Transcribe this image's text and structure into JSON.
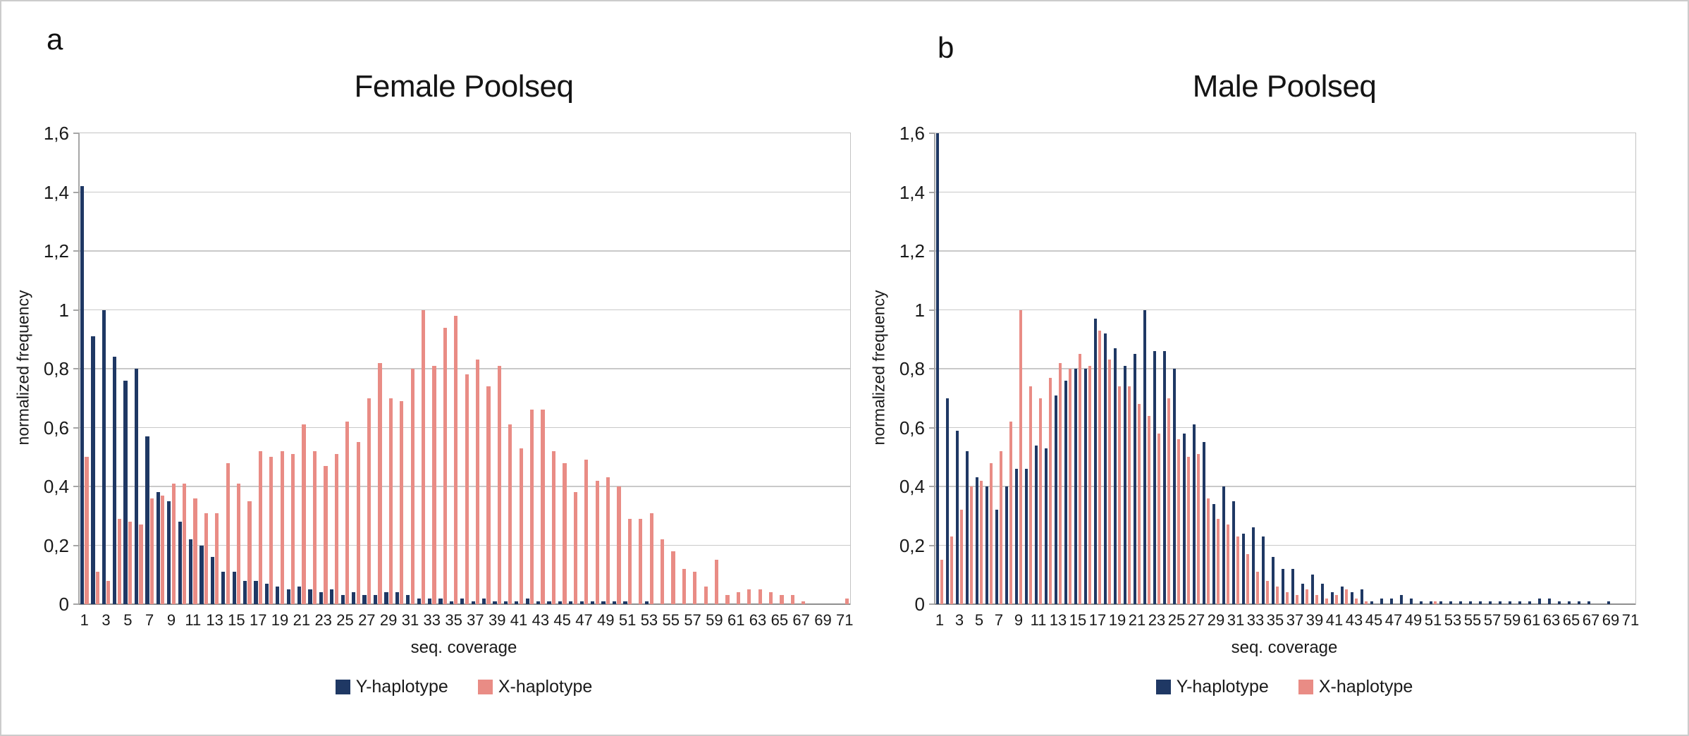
{
  "figure": {
    "panel_a_letter": "a",
    "panel_b_letter": "b"
  },
  "colors": {
    "y_haplotype": "#1f3864",
    "x_haplotype": "#e98c85",
    "gridline": "#c9c9c9",
    "axis": "#a6a6a6",
    "text": "#1a1a1a"
  },
  "chart_data": [
    {
      "type": "bar",
      "panel_letter": "a",
      "title": "Female Poolseq",
      "xlabel": "seq. coverage",
      "ylabel": "normalized frequency",
      "ylim": [
        0,
        1.6
      ],
      "ytick_step": 0.2,
      "grid": true,
      "legend_position": "bottom",
      "y_tick_labels": [
        "0",
        "0,2",
        "0,4",
        "0,6",
        "0,8",
        "1",
        "1,2",
        "1,4",
        "1,6"
      ],
      "x_tick_labels": [
        "1",
        "3",
        "5",
        "7",
        "9",
        "11",
        "13",
        "15",
        "17",
        "19",
        "21",
        "23",
        "25",
        "27",
        "29",
        "31",
        "33",
        "35",
        "37",
        "39",
        "41",
        "43",
        "45",
        "47",
        "49",
        "51",
        "53",
        "55",
        "57",
        "59",
        "61",
        "63",
        "65",
        "67",
        "69",
        "71"
      ],
      "x_range": [
        1,
        71
      ],
      "series": [
        {
          "name": "Y-haplotype",
          "color_key": "y_haplotype",
          "values": [
            1.42,
            0.91,
            1.0,
            0.84,
            0.76,
            0.8,
            0.57,
            0.38,
            0.35,
            0.28,
            0.22,
            0.2,
            0.16,
            0.11,
            0.11,
            0.08,
            0.08,
            0.07,
            0.06,
            0.05,
            0.06,
            0.05,
            0.04,
            0.05,
            0.03,
            0.04,
            0.03,
            0.03,
            0.04,
            0.04,
            0.03,
            0.02,
            0.02,
            0.02,
            0.01,
            0.02,
            0.01,
            0.02,
            0.01,
            0.01,
            0.01,
            0.02,
            0.01,
            0.01,
            0.01,
            0.01,
            0.01,
            0.01,
            0.01,
            0.01,
            0.01,
            0,
            0.01,
            0,
            0,
            0,
            0,
            0,
            0,
            0,
            0,
            0,
            0,
            0,
            0,
            0,
            0,
            0,
            0,
            0,
            0
          ]
        },
        {
          "name": "X-haplotype",
          "color_key": "x_haplotype",
          "values": [
            0.5,
            0.11,
            0.08,
            0.29,
            0.28,
            0.27,
            0.36,
            0.37,
            0.41,
            0.41,
            0.36,
            0.31,
            0.31,
            0.48,
            0.41,
            0.35,
            0.52,
            0.5,
            0.52,
            0.51,
            0.61,
            0.52,
            0.47,
            0.51,
            0.62,
            0.55,
            0.7,
            0.82,
            0.7,
            0.69,
            0.8,
            1.0,
            0.81,
            0.94,
            0.98,
            0.78,
            0.83,
            0.74,
            0.81,
            0.61,
            0.53,
            0.66,
            0.66,
            0.52,
            0.48,
            0.38,
            0.49,
            0.42,
            0.43,
            0.4,
            0.29,
            0.29,
            0.31,
            0.22,
            0.18,
            0.12,
            0.11,
            0.06,
            0.15,
            0.03,
            0.04,
            0.05,
            0.05,
            0.04,
            0.03,
            0.03,
            0.01,
            0,
            0,
            0,
            0.02
          ]
        }
      ]
    },
    {
      "type": "bar",
      "panel_letter": "b",
      "title": "Male Poolseq",
      "xlabel": "seq. coverage",
      "ylabel": "normalized frequency",
      "ylim": [
        0,
        1.6
      ],
      "ytick_step": 0.2,
      "grid": true,
      "legend_position": "bottom",
      "y_tick_labels": [
        "0",
        "0,2",
        "0,4",
        "0,6",
        "0,8",
        "1",
        "1,2",
        "1,4",
        "1,6"
      ],
      "x_tick_labels": [
        "1",
        "3",
        "5",
        "7",
        "9",
        "11",
        "13",
        "15",
        "17",
        "19",
        "21",
        "23",
        "25",
        "27",
        "29",
        "31",
        "33",
        "35",
        "37",
        "39",
        "41",
        "43",
        "45",
        "47",
        "49",
        "51",
        "53",
        "55",
        "57",
        "59",
        "61",
        "63",
        "65",
        "67",
        "69",
        "71"
      ],
      "x_range": [
        1,
        71
      ],
      "series": [
        {
          "name": "Y-haplotype",
          "color_key": "y_haplotype",
          "values": [
            1.6,
            0.7,
            0.59,
            0.52,
            0.43,
            0.4,
            0.32,
            0.4,
            0.46,
            0.46,
            0.54,
            0.53,
            0.71,
            0.76,
            0.8,
            0.8,
            0.97,
            0.92,
            0.87,
            0.81,
            0.85,
            1.0,
            0.86,
            0.86,
            0.8,
            0.58,
            0.61,
            0.55,
            0.34,
            0.4,
            0.35,
            0.24,
            0.26,
            0.23,
            0.16,
            0.12,
            0.12,
            0.07,
            0.1,
            0.07,
            0.04,
            0.06,
            0.04,
            0.05,
            0.01,
            0.02,
            0.02,
            0.03,
            0.02,
            0.01,
            0.01,
            0.01,
            0.01,
            0.01,
            0.01,
            0.01,
            0.01,
            0.01,
            0.01,
            0.01,
            0.01,
            0.02,
            0.02,
            0.01,
            0.01,
            0.01,
            0.01,
            0,
            0.01,
            0,
            0
          ]
        },
        {
          "name": "X-haplotype",
          "color_key": "x_haplotype",
          "values": [
            0.15,
            0.23,
            0.32,
            0.4,
            0.42,
            0.48,
            0.52,
            0.62,
            1.0,
            0.74,
            0.7,
            0.77,
            0.82,
            0.8,
            0.85,
            0.81,
            0.93,
            0.83,
            0.74,
            0.74,
            0.68,
            0.64,
            0.58,
            0.7,
            0.56,
            0.5,
            0.51,
            0.36,
            0.29,
            0.27,
            0.23,
            0.17,
            0.11,
            0.08,
            0.06,
            0.04,
            0.03,
            0.05,
            0.03,
            0.02,
            0.03,
            0.05,
            0.02,
            0.01,
            0,
            0,
            0,
            0,
            0,
            0,
            0.01,
            0,
            0,
            0,
            0,
            0,
            0,
            0,
            0,
            0,
            0,
            0,
            0,
            0,
            0,
            0,
            0,
            0,
            0,
            0,
            0
          ]
        }
      ]
    }
  ]
}
